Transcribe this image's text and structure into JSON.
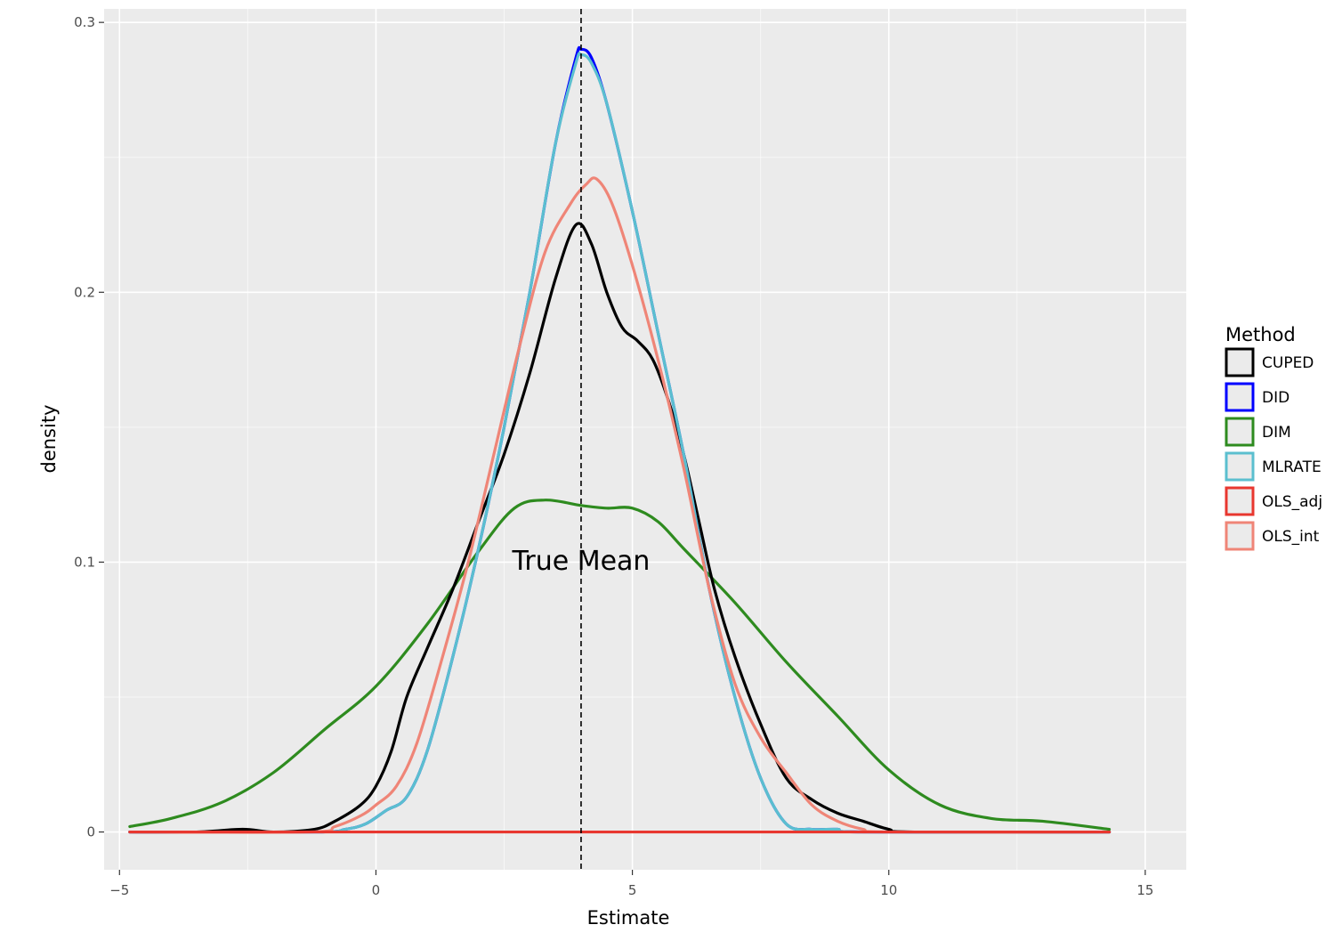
{
  "chart_data": {
    "type": "line",
    "xlabel": "Estimate",
    "ylabel": "density",
    "xlim": [
      -5.3,
      15.8
    ],
    "ylim": [
      -0.014,
      0.305
    ],
    "x_ticks": [
      {
        "value": -5,
        "label": "−5"
      },
      {
        "value": 0,
        "label": "0"
      },
      {
        "value": 5,
        "label": "5"
      },
      {
        "value": 10,
        "label": "10"
      },
      {
        "value": 15,
        "label": "15"
      }
    ],
    "y_ticks": [
      {
        "value": 0,
        "label": "0"
      },
      {
        "value": 0.1,
        "label": "0.1"
      },
      {
        "value": 0.2,
        "label": "0.2"
      },
      {
        "value": 0.3,
        "label": "0.3"
      }
    ],
    "grid": true,
    "panel_background": "#ebebeb",
    "grid_color": "#ffffff",
    "legend": {
      "title": "Method",
      "placement": "right"
    },
    "vline": {
      "x": 4,
      "style": "dashed",
      "color": "#000000"
    },
    "annotation": {
      "text": "True Mean",
      "x": 4,
      "y": 0.1
    },
    "series": [
      {
        "name": "CUPED",
        "color": "#000000",
        "points": [
          [
            -4.8,
            0
          ],
          [
            -3.5,
            0
          ],
          [
            -2.6,
            0.001
          ],
          [
            -2,
            0
          ],
          [
            -1.2,
            0.001
          ],
          [
            -0.8,
            0.004
          ],
          [
            -0.3,
            0.01
          ],
          [
            0,
            0.017
          ],
          [
            0.3,
            0.03
          ],
          [
            0.6,
            0.05
          ],
          [
            1,
            0.068
          ],
          [
            1.5,
            0.09
          ],
          [
            2,
            0.115
          ],
          [
            2.5,
            0.14
          ],
          [
            3,
            0.17
          ],
          [
            3.5,
            0.205
          ],
          [
            3.9,
            0.225
          ],
          [
            4.2,
            0.218
          ],
          [
            4.5,
            0.2
          ],
          [
            4.8,
            0.187
          ],
          [
            5.1,
            0.182
          ],
          [
            5.4,
            0.175
          ],
          [
            5.7,
            0.16
          ],
          [
            6,
            0.14
          ],
          [
            6.3,
            0.115
          ],
          [
            6.6,
            0.09
          ],
          [
            7,
            0.065
          ],
          [
            7.5,
            0.04
          ],
          [
            8,
            0.02
          ],
          [
            8.5,
            0.012
          ],
          [
            9,
            0.007
          ],
          [
            9.5,
            0.004
          ],
          [
            10,
            0.001
          ],
          [
            10.5,
            0
          ],
          [
            14.3,
            0
          ]
        ]
      },
      {
        "name": "DID",
        "color": "#0000ff",
        "points": [
          [
            -4.8,
            0
          ],
          [
            -1.2,
            0
          ],
          [
            -0.6,
            0.001
          ],
          [
            -0.2,
            0.003
          ],
          [
            0.2,
            0.008
          ],
          [
            0.6,
            0.013
          ],
          [
            1,
            0.03
          ],
          [
            1.5,
            0.065
          ],
          [
            2,
            0.105
          ],
          [
            2.5,
            0.15
          ],
          [
            3,
            0.2
          ],
          [
            3.5,
            0.255
          ],
          [
            3.9,
            0.287
          ],
          [
            4,
            0.29
          ],
          [
            4.2,
            0.287
          ],
          [
            4.5,
            0.27
          ],
          [
            5,
            0.23
          ],
          [
            5.5,
            0.185
          ],
          [
            6,
            0.14
          ],
          [
            6.5,
            0.09
          ],
          [
            7,
            0.05
          ],
          [
            7.5,
            0.02
          ],
          [
            8,
            0.003
          ],
          [
            8.5,
            0.001
          ],
          [
            9,
            0.001
          ],
          [
            9.5,
            0
          ],
          [
            14.3,
            0
          ]
        ]
      },
      {
        "name": "DIM",
        "color": "#2e8b1f",
        "points": [
          [
            -4.8,
            0.002
          ],
          [
            -4,
            0.005
          ],
          [
            -3,
            0.011
          ],
          [
            -2,
            0.022
          ],
          [
            -1,
            0.038
          ],
          [
            0,
            0.054
          ],
          [
            1,
            0.077
          ],
          [
            2,
            0.104
          ],
          [
            2.7,
            0.12
          ],
          [
            3.3,
            0.123
          ],
          [
            4,
            0.121
          ],
          [
            4.5,
            0.12
          ],
          [
            5,
            0.12
          ],
          [
            5.5,
            0.115
          ],
          [
            6,
            0.105
          ],
          [
            7,
            0.085
          ],
          [
            8,
            0.063
          ],
          [
            9,
            0.043
          ],
          [
            10,
            0.023
          ],
          [
            11,
            0.01
          ],
          [
            12,
            0.005
          ],
          [
            13,
            0.004
          ],
          [
            14.3,
            0.001
          ]
        ]
      },
      {
        "name": "MLRATE",
        "color": "#5bbfcf",
        "points": [
          [
            -4.8,
            0
          ],
          [
            -1.2,
            0
          ],
          [
            -0.6,
            0.001
          ],
          [
            -0.2,
            0.003
          ],
          [
            0.2,
            0.008
          ],
          [
            0.6,
            0.013
          ],
          [
            1,
            0.03
          ],
          [
            1.5,
            0.065
          ],
          [
            2,
            0.105
          ],
          [
            2.5,
            0.15
          ],
          [
            3,
            0.2
          ],
          [
            3.5,
            0.255
          ],
          [
            3.9,
            0.285
          ],
          [
            4,
            0.288
          ],
          [
            4.2,
            0.285
          ],
          [
            4.5,
            0.27
          ],
          [
            5,
            0.23
          ],
          [
            5.5,
            0.185
          ],
          [
            6,
            0.14
          ],
          [
            6.5,
            0.09
          ],
          [
            7,
            0.05
          ],
          [
            7.5,
            0.02
          ],
          [
            8,
            0.003
          ],
          [
            8.5,
            0.001
          ],
          [
            9,
            0.001
          ],
          [
            9.5,
            0
          ],
          [
            14.3,
            0
          ]
        ]
      },
      {
        "name": "OLS_adj",
        "color": "#e8372f",
        "points": [
          [
            -4.8,
            0
          ],
          [
            0,
            0
          ],
          [
            5,
            0
          ],
          [
            10,
            0
          ],
          [
            14.3,
            0
          ]
        ]
      },
      {
        "name": "OLS_int",
        "color": "#ef8577",
        "points": [
          [
            -4.8,
            0
          ],
          [
            -1.3,
            0
          ],
          [
            -0.8,
            0.002
          ],
          [
            -0.3,
            0.006
          ],
          [
            0,
            0.01
          ],
          [
            0.4,
            0.017
          ],
          [
            0.8,
            0.033
          ],
          [
            1.3,
            0.065
          ],
          [
            1.8,
            0.1
          ],
          [
            2.3,
            0.14
          ],
          [
            2.8,
            0.18
          ],
          [
            3.3,
            0.215
          ],
          [
            3.8,
            0.233
          ],
          [
            4.1,
            0.24
          ],
          [
            4.3,
            0.242
          ],
          [
            4.6,
            0.233
          ],
          [
            5,
            0.21
          ],
          [
            5.5,
            0.175
          ],
          [
            6,
            0.135
          ],
          [
            6.5,
            0.09
          ],
          [
            7,
            0.055
          ],
          [
            7.5,
            0.035
          ],
          [
            8,
            0.022
          ],
          [
            8.5,
            0.01
          ],
          [
            9,
            0.004
          ],
          [
            9.5,
            0.001
          ],
          [
            10,
            0
          ],
          [
            14.3,
            0
          ]
        ]
      }
    ]
  }
}
